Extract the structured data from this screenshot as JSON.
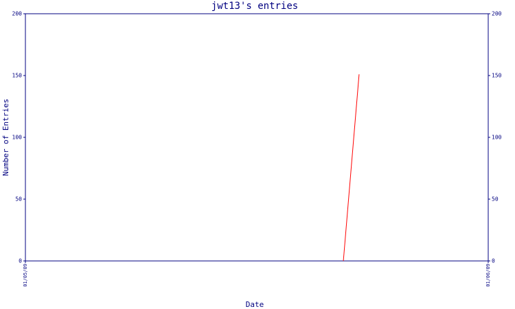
{
  "chart_data": {
    "type": "line",
    "title": "jwt13's entries",
    "x_label": "Date",
    "y_label": "Number of Entries",
    "x": [
      0.687,
      0.721
    ],
    "series": [
      {
        "name": "entries",
        "color": "#ff0000",
        "values": [
          0,
          151
        ]
      }
    ],
    "xlim": [
      0,
      1
    ],
    "xticks": [
      {
        "value": 0,
        "label": "01/05/09"
      },
      {
        "value": 1,
        "label": "01/06/09"
      }
    ],
    "ylim": [
      0,
      200
    ],
    "yticks": [
      0,
      50,
      100,
      150,
      200
    ],
    "axis_color": "#000080"
  }
}
